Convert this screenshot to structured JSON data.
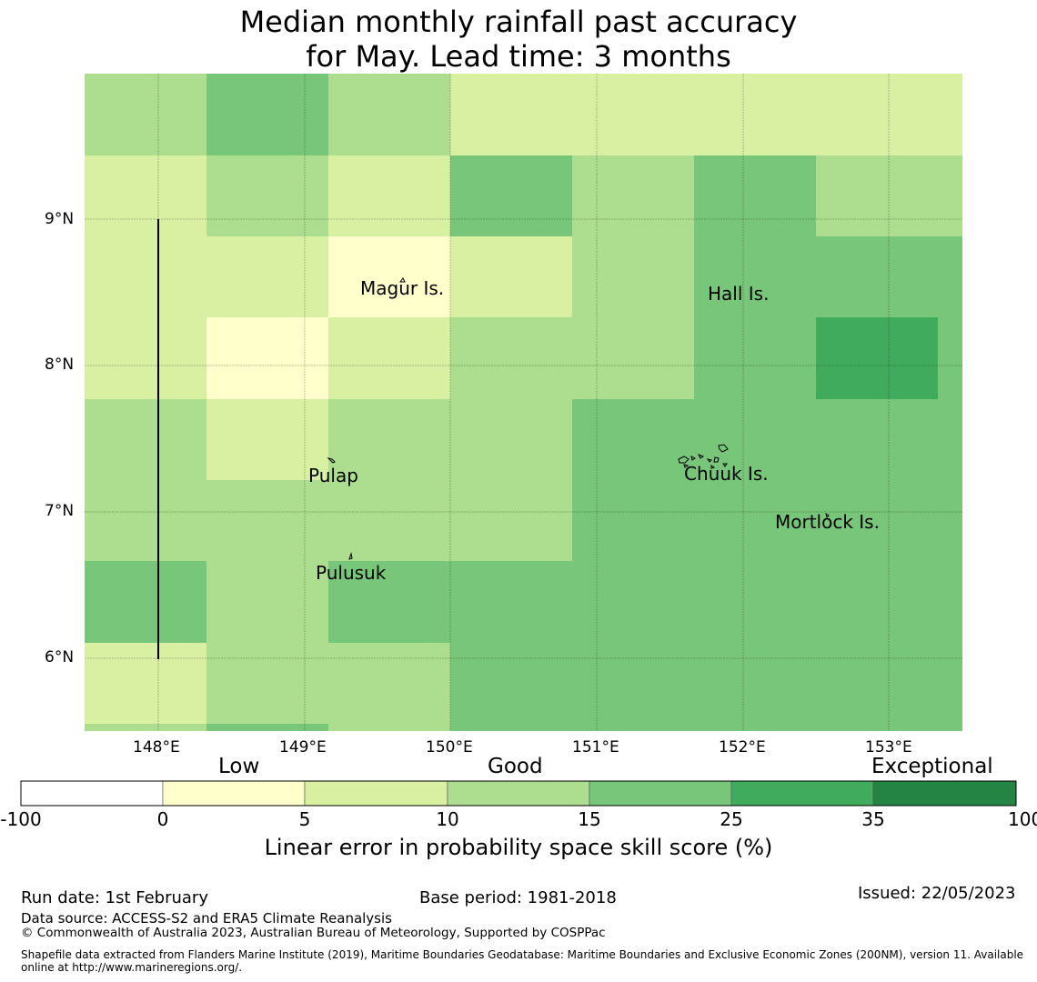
{
  "title": {
    "line1": "Median monthly rainfall past accuracy",
    "line2": "for May. Lead time: 3 months"
  },
  "map": {
    "longitude_ticks": [
      "148°E",
      "149°E",
      "150°E",
      "151°E",
      "152°E",
      "153°E"
    ],
    "latitude_ticks": [
      "9°N",
      "8°N",
      "7°N",
      "6°N"
    ],
    "places": [
      "Magur Is.",
      "Hall Is.",
      "Pulap",
      "Chuuk Is.",
      "Mortlock Is.",
      "Pulusuk"
    ],
    "skill_grid_note": "cell classes: 0=Low(0-5) 1=5-10 2=10-15 3=15-25 4=25-35",
    "skill_grid": [
      [
        2,
        3,
        2,
        1,
        1,
        1,
        1,
        1
      ],
      [
        1,
        2,
        1,
        3,
        2,
        3,
        2,
        2
      ],
      [
        1,
        1,
        0,
        1,
        2,
        3,
        3,
        3
      ],
      [
        1,
        0,
        1,
        2,
        2,
        3,
        4,
        3
      ],
      [
        2,
        1,
        2,
        2,
        3,
        3,
        3,
        3
      ],
      [
        2,
        2,
        2,
        2,
        3,
        3,
        3,
        3
      ],
      [
        3,
        2,
        3,
        3,
        3,
        3,
        3,
        3
      ],
      [
        1,
        2,
        2,
        3,
        3,
        3,
        3,
        3
      ]
    ],
    "edge_strip_classes": [
      "2",
      "3",
      "2",
      "3",
      "3",
      "3",
      "3",
      "3"
    ]
  },
  "colorbar": {
    "categories": [
      "Low",
      "Good",
      "Exceptional"
    ],
    "boundaries": [
      "-100",
      "0",
      "5",
      "10",
      "15",
      "25",
      "35",
      "100"
    ],
    "colors": [
      "#ffffff",
      "#ffffcc",
      "#d9f0a3",
      "#addd8e",
      "#78c679",
      "#41ab5d",
      "#238443"
    ],
    "label": "Linear error in probability space skill score (%)"
  },
  "footer": {
    "run_date": "Run date: 1st February",
    "base_period": "Base period: 1981-2018",
    "issued": "Issued: 22/05/2023",
    "data_source": "Data source: ACCESS-S2 and ERA5 Climate Reanalysis",
    "copyright": "© Commonwealth of Australia 2023, Australian Bureau of Meteorology, Supported by COSPPac",
    "shapefile_line1": "Shapefile data extracted from Flanders Marine Institute (2019), Maritime Boundaries Geodatabase: Maritime Boundaries and Exclusive Economic Zones (200NM), version 11. Available",
    "shapefile_line2": "online at http://www.marineregions.org/."
  }
}
